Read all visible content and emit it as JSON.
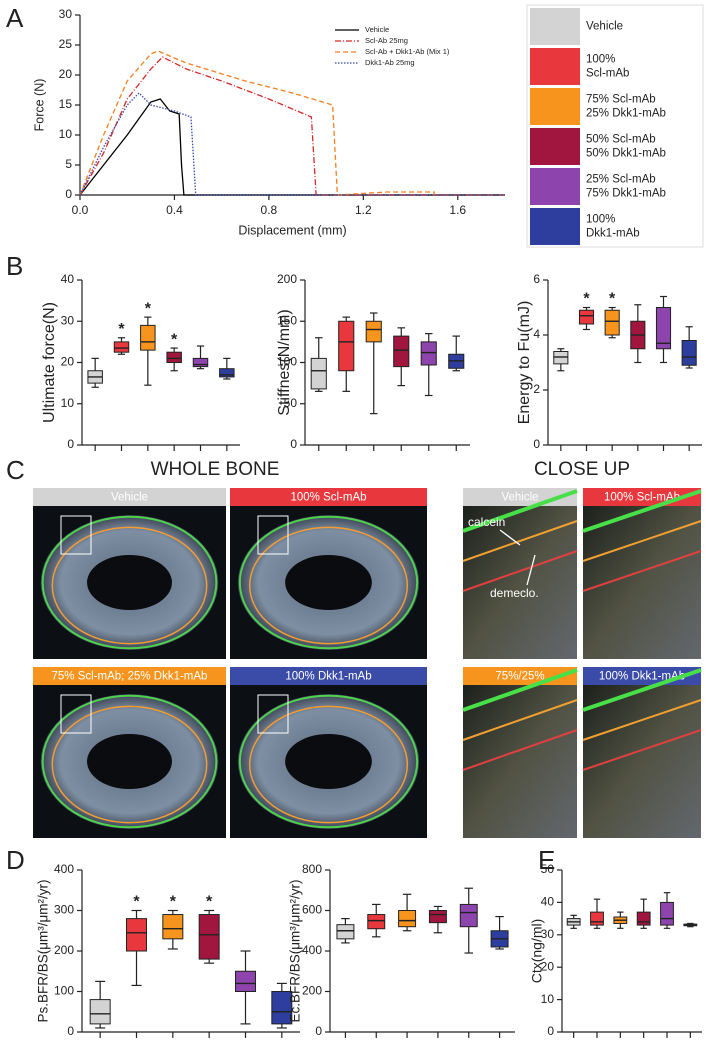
{
  "panel_letters": [
    "A",
    "B",
    "C",
    "D",
    "E"
  ],
  "legend_panel": [
    {
      "lines": [
        "Vehicle"
      ],
      "color": "#d3d3d3"
    },
    {
      "lines": [
        "100%",
        "Scl-mAb"
      ],
      "color": "#e8383d"
    },
    {
      "lines": [
        "75% Scl-mAb",
        "25% Dkk1-mAb"
      ],
      "color": "#f7941d"
    },
    {
      "lines": [
        "50% Scl-mAb",
        "50% Dkk1-mAb"
      ],
      "color": "#a0163f"
    },
    {
      "lines": [
        "25% Scl-mAb",
        "75% Dkk1-mAb"
      ],
      "color": "#8e44ad"
    },
    {
      "lines": [
        "100%",
        "Dkk1-mAb"
      ],
      "color": "#2e3e9e"
    }
  ],
  "section_titles": [
    "WHOLE BONE",
    "CLOSE UP"
  ],
  "images": [
    {
      "caption": "Vehicle",
      "color": "#d3d3d3"
    },
    {
      "caption": "100% Scl-mAb",
      "color": "#e8383d"
    },
    {
      "caption": "75% Scl-mAb; 25% Dkk1-mAb",
      "color": "#f7941d"
    },
    {
      "caption": "100% Dkk1-mAb",
      "color": "#3b4ba8"
    },
    {
      "caption": "Vehicle",
      "color": "#d3d3d3"
    },
    {
      "caption": "100% Scl-mAb",
      "color": "#e8383d"
    },
    {
      "caption": "75%/25%",
      "color": "#f7941d"
    },
    {
      "caption": "100% Dkk1-mAb",
      "color": "#3b4ba8"
    }
  ],
  "image_annotations": [
    "calcein",
    "demeclo."
  ],
  "chart_data": [
    {
      "type": "line",
      "xlabel": "Displacement (mm)",
      "ylabel": "Force (N)",
      "xlim": [
        0,
        1.8
      ],
      "xticks": [
        {
          "value": 0,
          "label": "0.0"
        },
        0.4,
        0.8,
        1.2,
        1.6
      ],
      "ylim": [
        0,
        30
      ],
      "yticks": [
        0,
        5,
        10,
        15,
        20,
        25,
        30
      ],
      "legend": "upper right",
      "series": [
        {
          "name": "Vehicle",
          "color": "#000000",
          "dash": "none",
          "x": [
            0,
            0.1,
            0.2,
            0.3,
            0.34,
            0.38,
            0.42,
            0.43,
            0.44,
            1.8
          ],
          "values": [
            0,
            5,
            10,
            15.5,
            16,
            14,
            13.5,
            5,
            0,
            0
          ]
        },
        {
          "name": "Scl-Ab 25mg",
          "color": "#d62728",
          "dash": "6 2 1 2",
          "x": [
            0,
            0.1,
            0.2,
            0.3,
            0.35,
            0.45,
            0.6,
            0.8,
            0.98,
            1.0,
            1.8
          ],
          "values": [
            0,
            7,
            16,
            21,
            23,
            21,
            19,
            16,
            13,
            0,
            0
          ]
        },
        {
          "name": "Scl-Ab + Dkk1-Ab (Mix 1)",
          "color": "#f57f20",
          "dash": "5 3",
          "x": [
            0,
            0.1,
            0.2,
            0.3,
            0.33,
            0.45,
            0.7,
            0.9,
            1.07,
            1.09,
            1.3,
            1.5,
            1.5
          ],
          "values": [
            0,
            10,
            19,
            23.5,
            24,
            22,
            19,
            17,
            15,
            0,
            0.5,
            0.5,
            0
          ]
        },
        {
          "name": "Dkk1-Ab 25mg",
          "color": "#3a49a8",
          "dash": "1.5 1.5",
          "x": [
            0,
            0.1,
            0.2,
            0.25,
            0.3,
            0.4,
            0.47,
            0.49,
            1.8
          ],
          "values": [
            0,
            8,
            15,
            17,
            15,
            14,
            13,
            0,
            0
          ]
        }
      ]
    },
    {
      "type": "box",
      "ylabel": "Ultimate force(N)",
      "ylim": [
        0,
        40
      ],
      "yticks": [
        0,
        10,
        20,
        30,
        40
      ],
      "boxes": [
        {
          "color": "#d3d3d3",
          "low": 14,
          "q1": 15,
          "median": 16.5,
          "q3": 18,
          "high": 21
        },
        {
          "color": "#e8383d",
          "low": 22,
          "q1": 22.5,
          "median": 23.5,
          "q3": 25,
          "high": 26
        },
        {
          "color": "#f7941d",
          "low": 14.5,
          "q1": 23,
          "median": 25,
          "q3": 29,
          "high": 31
        },
        {
          "color": "#a0163f",
          "low": 18,
          "q1": 20,
          "median": 21,
          "q3": 22.5,
          "high": 23.5
        },
        {
          "color": "#8e44ad",
          "low": 18.5,
          "q1": 19,
          "median": 19.5,
          "q3": 21,
          "high": 24
        },
        {
          "color": "#2e3e9e",
          "low": 16,
          "q1": 16.5,
          "median": 17,
          "q3": 18.5,
          "high": 21
        }
      ],
      "annotations": [
        null,
        "*",
        "*",
        "*",
        null,
        null
      ]
    },
    {
      "type": "box",
      "ylabel": "Stiffnes(N/mm)",
      "ylim": [
        0,
        200
      ],
      "yticks": [
        0,
        50,
        100,
        150,
        200
      ],
      "boxes": [
        {
          "color": "#d3d3d3",
          "low": 65,
          "q1": 68,
          "median": 90,
          "q3": 105,
          "high": 130
        },
        {
          "color": "#e8383d",
          "low": 65,
          "q1": 90,
          "median": 125,
          "q3": 150,
          "high": 155
        },
        {
          "color": "#f7941d",
          "low": 38,
          "q1": 125,
          "median": 140,
          "q3": 150,
          "high": 160
        },
        {
          "color": "#a0163f",
          "low": 72,
          "q1": 95,
          "median": 115,
          "q3": 132,
          "high": 142
        },
        {
          "color": "#8e44ad",
          "low": 60,
          "q1": 97,
          "median": 112,
          "q3": 125,
          "high": 135
        },
        {
          "color": "#2e3e9e",
          "low": 90,
          "q1": 93,
          "median": 102,
          "q3": 110,
          "high": 132
        }
      ],
      "annotations": [
        null,
        null,
        null,
        null,
        null,
        null
      ]
    },
    {
      "type": "box",
      "ylabel": "Energy to Fu(mJ)",
      "ylim": [
        0,
        6
      ],
      "yticks": [
        0,
        2,
        4,
        6
      ],
      "boxes": [
        {
          "color": "#d3d3d3",
          "low": 2.7,
          "q1": 2.95,
          "median": 3.2,
          "q3": 3.4,
          "high": 3.5
        },
        {
          "color": "#e8383d",
          "low": 4.2,
          "q1": 4.4,
          "median": 4.7,
          "q3": 4.9,
          "high": 5.0
        },
        {
          "color": "#f7941d",
          "low": 3.9,
          "q1": 4.0,
          "median": 4.5,
          "q3": 4.9,
          "high": 5.0
        },
        {
          "color": "#a0163f",
          "low": 3.0,
          "q1": 3.5,
          "median": 4.0,
          "q3": 4.5,
          "high": 5.1
        },
        {
          "color": "#8e44ad",
          "low": 3.0,
          "q1": 3.5,
          "median": 3.7,
          "q3": 5.0,
          "high": 5.4
        },
        {
          "color": "#2e3e9e",
          "low": 2.8,
          "q1": 2.9,
          "median": 3.2,
          "q3": 3.8,
          "high": 4.3
        }
      ],
      "annotations": [
        null,
        "*",
        "*",
        null,
        null,
        null
      ]
    },
    {
      "type": "box",
      "ylabel": "Ps.BFR/BS(μm³/μm²/yr)",
      "ylim": [
        0,
        400
      ],
      "yticks": [
        0,
        100,
        200,
        300,
        400
      ],
      "boxes": [
        {
          "color": "#d3d3d3",
          "low": 10,
          "q1": 20,
          "median": 45,
          "q3": 80,
          "high": 125
        },
        {
          "color": "#e8383d",
          "low": 115,
          "q1": 200,
          "median": 245,
          "q3": 280,
          "high": 300
        },
        {
          "color": "#f7941d",
          "low": 205,
          "q1": 230,
          "median": 255,
          "q3": 290,
          "high": 300
        },
        {
          "color": "#a0163f",
          "low": 170,
          "q1": 180,
          "median": 240,
          "q3": 290,
          "high": 300
        },
        {
          "color": "#8e44ad",
          "low": 20,
          "q1": 100,
          "median": 120,
          "q3": 150,
          "high": 200
        },
        {
          "color": "#2e3e9e",
          "low": 10,
          "q1": 20,
          "median": 50,
          "q3": 100,
          "high": 120
        }
      ],
      "annotations": [
        null,
        "*",
        "*",
        "*",
        null,
        null
      ]
    },
    {
      "type": "box",
      "ylabel": "Ec.BFR/BS(μm³/μm²/yr)",
      "ylim": [
        0,
        800
      ],
      "yticks": [
        0,
        200,
        400,
        600,
        800
      ],
      "boxes": [
        {
          "color": "#d3d3d3",
          "low": 440,
          "q1": 460,
          "median": 500,
          "q3": 530,
          "high": 560
        },
        {
          "color": "#e8383d",
          "low": 470,
          "q1": 510,
          "median": 550,
          "q3": 580,
          "high": 630
        },
        {
          "color": "#f7941d",
          "low": 500,
          "q1": 520,
          "median": 550,
          "q3": 600,
          "high": 680
        },
        {
          "color": "#a0163f",
          "low": 490,
          "q1": 540,
          "median": 580,
          "q3": 600,
          "high": 620
        },
        {
          "color": "#8e44ad",
          "low": 390,
          "q1": 520,
          "median": 590,
          "q3": 630,
          "high": 710
        },
        {
          "color": "#2e3e9e",
          "low": 410,
          "q1": 420,
          "median": 460,
          "q3": 500,
          "high": 570
        }
      ],
      "annotations": [
        null,
        null,
        null,
        null,
        null,
        null
      ]
    },
    {
      "type": "box",
      "ylabel": "Ctx(ng/ml)",
      "ylim": [
        0,
        50
      ],
      "yticks": [
        0,
        10,
        20,
        30,
        40,
        50
      ],
      "boxes": [
        {
          "color": "#d3d3d3",
          "low": 32,
          "q1": 33,
          "median": 34,
          "q3": 35,
          "high": 36
        },
        {
          "color": "#e8383d",
          "low": 32,
          "q1": 33,
          "median": 34,
          "q3": 37,
          "high": 41
        },
        {
          "color": "#f7941d",
          "low": 32,
          "q1": 33.5,
          "median": 34.5,
          "q3": 35.5,
          "high": 37
        },
        {
          "color": "#a0163f",
          "low": 32,
          "q1": 33,
          "median": 34,
          "q3": 37,
          "high": 41
        },
        {
          "color": "#8e44ad",
          "low": 32,
          "q1": 33,
          "median": 35,
          "q3": 40,
          "high": 43
        },
        {
          "color": "#2e3e9e",
          "low": 32.5,
          "q1": 32.8,
          "median": 33,
          "q3": 33.3,
          "high": 33.5
        }
      ],
      "annotations": [
        null,
        null,
        null,
        null,
        null,
        null
      ]
    }
  ]
}
